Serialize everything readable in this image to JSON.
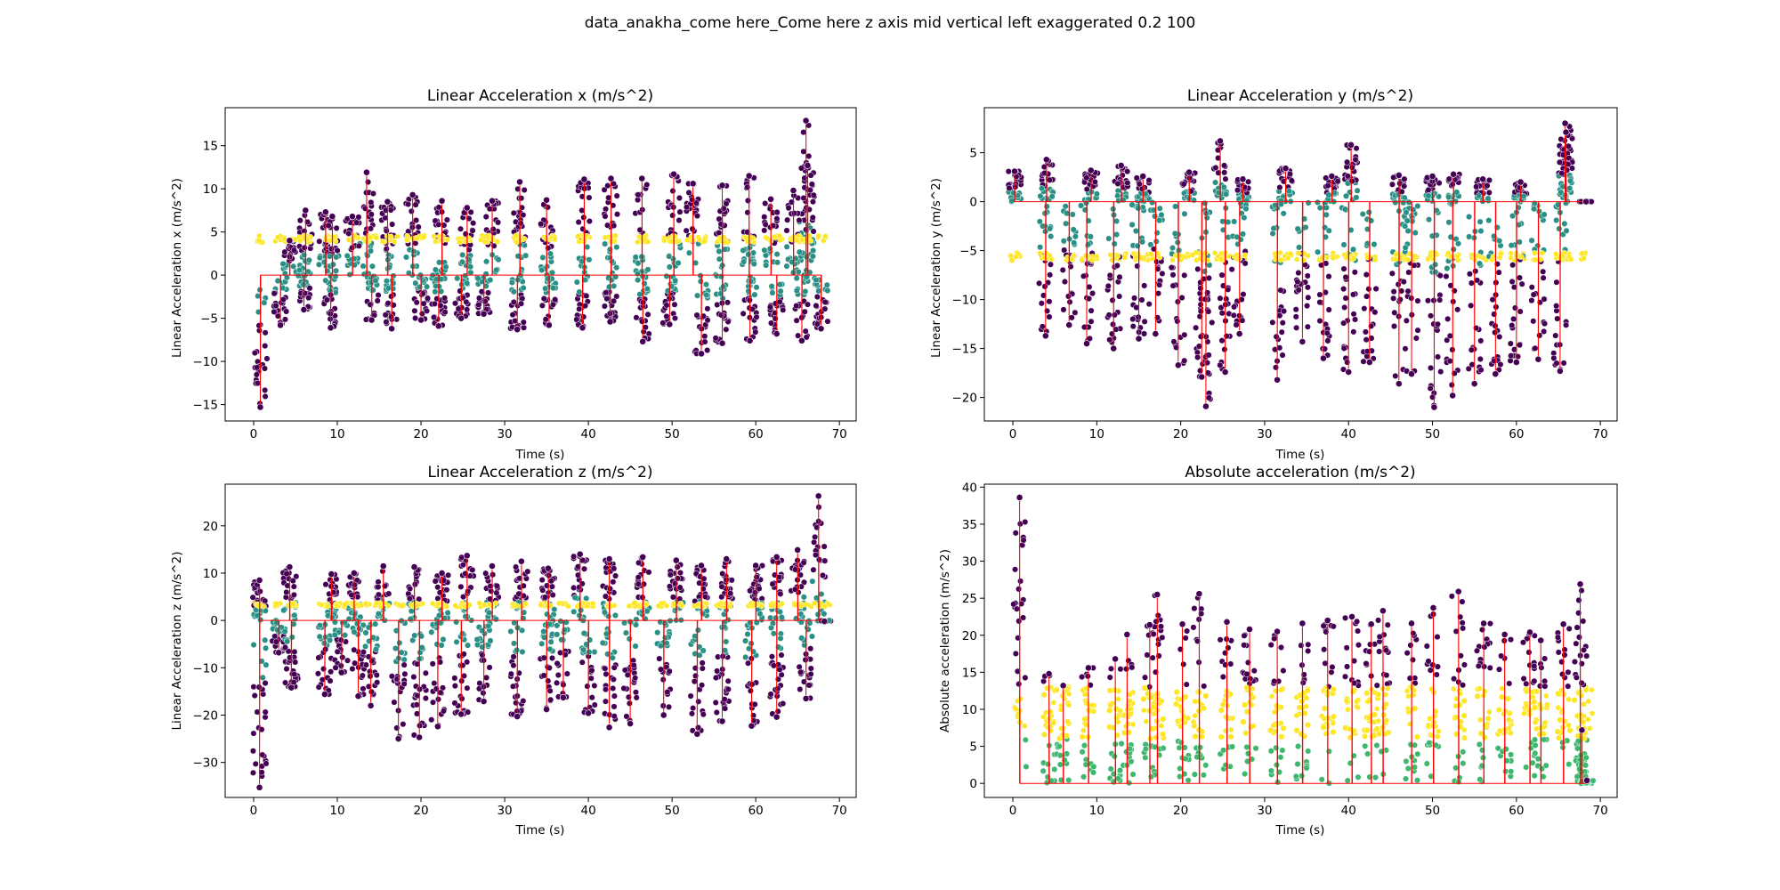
{
  "figure": {
    "suptitle": "data_anakha_come here_Come here z axis mid vertical left exaggerated 0.2 100"
  },
  "colors": {
    "line": "#ff0000",
    "dark": "#440154",
    "teal": "#2a9086",
    "green": "#3fb86f",
    "yellow": "#fde725",
    "axes": "#000000"
  },
  "chart_data": [
    {
      "type": "scatter",
      "title": "Linear Acceleration x (m/s^2)",
      "xlabel": "Time (s)",
      "ylabel": "Linear Acceleration x (m/s^2)",
      "xlim": [
        -3.4,
        72
      ],
      "ylim": [
        -16.9,
        19.4
      ],
      "xticks": [
        0,
        10,
        20,
        30,
        40,
        50,
        60,
        70
      ],
      "yticks": [
        -15,
        -10,
        -5,
        0,
        5,
        10,
        15
      ],
      "baseline": 0,
      "yellow_level": 4.2,
      "series": [
        {
          "values": [
            [
              0.8,
              -15.3
            ],
            [
              13.5,
              11.9
            ],
            [
              66.0,
              17.9
            ],
            [
              66.2,
              12.7
            ],
            [
              4.3,
              4.0
            ],
            [
              6.2,
              7.5
            ],
            [
              8.6,
              7.3
            ],
            [
              9.4,
              6.8
            ],
            [
              11.8,
              6.8
            ],
            [
              16.0,
              8.5
            ],
            [
              19.0,
              9.3
            ],
            [
              22.5,
              8.6
            ],
            [
              25.5,
              7.8
            ],
            [
              28.5,
              8.6
            ],
            [
              31.8,
              10.8
            ],
            [
              35.0,
              8.7
            ],
            [
              39.5,
              11.1
            ],
            [
              42.7,
              11.2
            ],
            [
              46.4,
              11.2
            ],
            [
              50.2,
              11.7
            ],
            [
              52.5,
              10.6
            ],
            [
              56.0,
              10.4
            ],
            [
              59.2,
              11.5
            ],
            [
              61.8,
              8.8
            ],
            [
              64.5,
              9.8
            ],
            [
              3.2,
              -5.8
            ],
            [
              6.0,
              -4.0
            ],
            [
              9.2,
              -6.1
            ],
            [
              14.1,
              -5.2
            ],
            [
              16.5,
              -6.2
            ],
            [
              20.0,
              -5.2
            ],
            [
              22.1,
              -5.9
            ],
            [
              24.8,
              -5.0
            ],
            [
              27.5,
              -4.5
            ],
            [
              31.5,
              -6.3
            ],
            [
              35.3,
              -5.8
            ],
            [
              39.3,
              -6.1
            ],
            [
              42.6,
              -5.4
            ],
            [
              46.5,
              -7.7
            ],
            [
              49.7,
              -5.7
            ],
            [
              53.5,
              -9.1
            ],
            [
              56.0,
              -7.9
            ],
            [
              59.3,
              -7.6
            ],
            [
              62.5,
              -6.8
            ],
            [
              65.5,
              -7.6
            ],
            [
              67.8,
              -6.2
            ]
          ]
        }
      ]
    },
    {
      "type": "scatter",
      "title": "Linear Acceleration y (m/s^2)",
      "xlabel": "Time (s)",
      "ylabel": "Linear Acceleration y (m/s^2)",
      "xlim": [
        -3.4,
        72
      ],
      "ylim": [
        -22.4,
        9.6
      ],
      "xticks": [
        0,
        10,
        20,
        30,
        40,
        50,
        60,
        70
      ],
      "yticks": [
        -20,
        -15,
        -10,
        -5,
        0,
        5
      ],
      "baseline": 0,
      "yellow_level": -5.6,
      "series": [
        {
          "values": [
            [
              24.7,
              6.2
            ],
            [
              40.3,
              5.8
            ],
            [
              65.8,
              8.0
            ],
            [
              65.9,
              7.1
            ],
            [
              0.2,
              3.1
            ],
            [
              4.0,
              4.3
            ],
            [
              9.3,
              3.2
            ],
            [
              12.9,
              3.7
            ],
            [
              15.5,
              2.6
            ],
            [
              21.0,
              3.0
            ],
            [
              27.4,
              2.3
            ],
            [
              32.5,
              3.4
            ],
            [
              38.0,
              2.6
            ],
            [
              46.0,
              2.7
            ],
            [
              50.0,
              2.6
            ],
            [
              52.5,
              2.8
            ],
            [
              56.0,
              2.3
            ],
            [
              60.5,
              2.0
            ],
            [
              3.9,
              -13.7
            ],
            [
              6.7,
              -12.6
            ],
            [
              8.8,
              -14.5
            ],
            [
              12.0,
              -15.0
            ],
            [
              15.0,
              -14.0
            ],
            [
              17.0,
              -13.5
            ],
            [
              19.7,
              -16.7
            ],
            [
              22.5,
              -17.9
            ],
            [
              23.0,
              -20.9
            ],
            [
              25.3,
              -17.4
            ],
            [
              27.0,
              -13.5
            ],
            [
              31.5,
              -18.2
            ],
            [
              34.5,
              -14.3
            ],
            [
              37.0,
              -16.0
            ],
            [
              40.0,
              -17.4
            ],
            [
              42.5,
              -16.4
            ],
            [
              46.0,
              -18.6
            ],
            [
              47.5,
              -17.6
            ],
            [
              50.2,
              -21.0
            ],
            [
              52.4,
              -19.8
            ],
            [
              55.0,
              -18.6
            ],
            [
              57.5,
              -17.6
            ],
            [
              60.0,
              -16.4
            ],
            [
              62.6,
              -16.1
            ],
            [
              65.2,
              -17.3
            ],
            [
              68.3,
              0.0
            ]
          ]
        }
      ]
    },
    {
      "type": "scatter",
      "title": "Linear Acceleration z (m/s^2)",
      "xlabel": "Time (s)",
      "ylabel": "Linear Acceleration z (m/s^2)",
      "xlim": [
        -3.4,
        72
      ],
      "ylim": [
        -37.4,
        28.8
      ],
      "xticks": [
        0,
        10,
        20,
        30,
        40,
        50,
        60,
        70
      ],
      "yticks": [
        -30,
        -20,
        -10,
        0,
        10,
        20
      ],
      "baseline": 0,
      "yellow_level": 3.3,
      "series": [
        {
          "values": [
            [
              0.7,
              -35.3
            ],
            [
              67.5,
              26.3
            ],
            [
              0.7,
              8.5
            ],
            [
              4.3,
              11.3
            ],
            [
              9.3,
              9.8
            ],
            [
              12.0,
              10.0
            ],
            [
              15.5,
              11.5
            ],
            [
              19.2,
              11.3
            ],
            [
              22.5,
              10.0
            ],
            [
              25.5,
              13.7
            ],
            [
              28.5,
              11.5
            ],
            [
              32.0,
              12.5
            ],
            [
              35.2,
              11.0
            ],
            [
              39.0,
              14.0
            ],
            [
              42.5,
              13.0
            ],
            [
              46.5,
              13.4
            ],
            [
              50.5,
              12.7
            ],
            [
              53.5,
              11.6
            ],
            [
              56.5,
              13.0
            ],
            [
              60.0,
              11.6
            ],
            [
              62.5,
              13.4
            ],
            [
              65.0,
              14.9
            ],
            [
              3.0,
              -6.8
            ],
            [
              4.5,
              -14.2
            ],
            [
              8.5,
              -15.6
            ],
            [
              10.5,
              -11.0
            ],
            [
              12.5,
              -16.0
            ],
            [
              14.0,
              -18.0
            ],
            [
              17.3,
              -25.0
            ],
            [
              19.8,
              -24.7
            ],
            [
              22.0,
              -22.4
            ],
            [
              24.8,
              -19.8
            ],
            [
              27.5,
              -17.1
            ],
            [
              31.5,
              -20.3
            ],
            [
              35.0,
              -18.8
            ],
            [
              37.0,
              -16.3
            ],
            [
              40.0,
              -19.6
            ],
            [
              42.5,
              -22.6
            ],
            [
              45.0,
              -21.8
            ],
            [
              49.0,
              -20.0
            ],
            [
              53.0,
              -24.0
            ],
            [
              56.0,
              -21.3
            ],
            [
              59.5,
              -22.3
            ],
            [
              62.5,
              -20.4
            ],
            [
              66.0,
              -16.5
            ],
            [
              68.2,
              -0.2
            ]
          ]
        }
      ]
    },
    {
      "type": "scatter",
      "title": "Absolute acceleration (m/s^2)",
      "xlabel": "Time (s)",
      "ylabel": "Absolute acceleration (m/s^2)",
      "xlim": [
        -3.4,
        72
      ],
      "ylim": [
        -1.9,
        40.4
      ],
      "xticks": [
        0,
        10,
        20,
        30,
        40,
        50,
        60,
        70
      ],
      "yticks": [
        0,
        5,
        10,
        15,
        20,
        25,
        30,
        35,
        40
      ],
      "baseline": 0,
      "yellow_level": 10.0,
      "series": [
        {
          "values": [
            [
              0.8,
              38.6
            ],
            [
              67.6,
              26.9
            ],
            [
              4.3,
              14.8
            ],
            [
              6.0,
              13.2
            ],
            [
              9.0,
              15.6
            ],
            [
              12.2,
              16.8
            ],
            [
              13.6,
              20.1
            ],
            [
              16.3,
              21.4
            ],
            [
              17.2,
              25.5
            ],
            [
              20.2,
              21.5
            ],
            [
              22.2,
              25.6
            ],
            [
              25.5,
              21.8
            ],
            [
              28.2,
              20.8
            ],
            [
              31.5,
              20.5
            ],
            [
              34.5,
              21.6
            ],
            [
              37.5,
              22.0
            ],
            [
              40.4,
              22.5
            ],
            [
              42.7,
              21.5
            ],
            [
              44.1,
              23.3
            ],
            [
              47.5,
              21.6
            ],
            [
              50.1,
              23.7
            ],
            [
              53.1,
              25.9
            ],
            [
              56.1,
              21.6
            ],
            [
              58.6,
              20.1
            ],
            [
              61.6,
              20.4
            ],
            [
              62.9,
              19.3
            ],
            [
              65.6,
              21.5
            ],
            [
              67.8,
              7.2
            ],
            [
              68.4,
              0.4
            ]
          ]
        }
      ]
    }
  ]
}
